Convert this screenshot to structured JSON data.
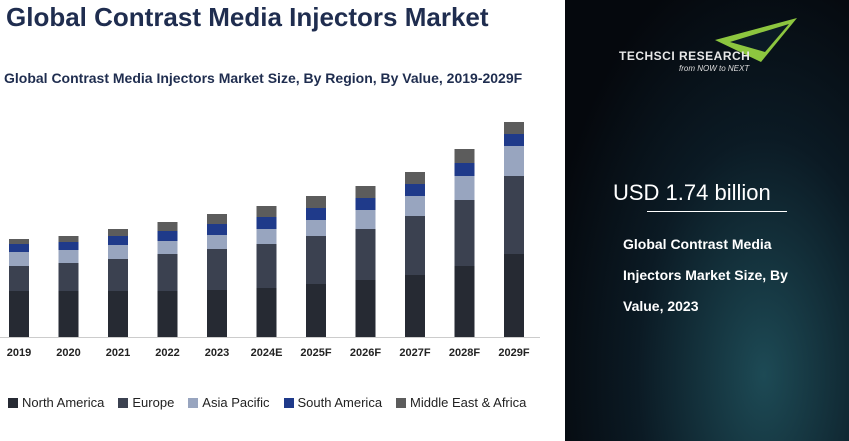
{
  "header": {
    "title": "Global Contrast Media Injectors Market"
  },
  "chart_data": {
    "type": "stacked_bar",
    "title": "Global Contrast Media Injectors Market Size, By Region, By Value, 2019-2029F",
    "categories": [
      "2019",
      "2020",
      "2021",
      "2022",
      "2023",
      "2024E",
      "2025F",
      "2026F",
      "2027F",
      "2028F",
      "2029F"
    ],
    "series": [
      {
        "name": "North America",
        "color": "#262a33",
        "values": [
          46,
          46,
          46,
          46,
          47,
          49,
          53,
          57,
          62,
          71,
          83
        ]
      },
      {
        "name": "Europe",
        "color": "#3b4150",
        "values": [
          25,
          28,
          32,
          37,
          41,
          44,
          48,
          51,
          59,
          66,
          78
        ]
      },
      {
        "name": "Asia Pacific",
        "color": "#98a5bf",
        "values": [
          14,
          13,
          14,
          13,
          14,
          15,
          16,
          19,
          20,
          24,
          30
        ]
      },
      {
        "name": "South America",
        "color": "#1f3a8a",
        "values": [
          8,
          8,
          9,
          10,
          11,
          12,
          12,
          12,
          12,
          13,
          12
        ]
      },
      {
        "name": "Middle East & Africa",
        "color": "#5c5c5c",
        "values": [
          5,
          6,
          7,
          9,
          10,
          11,
          12,
          12,
          12,
          14,
          12
        ]
      }
    ],
    "ylim": [
      0,
      230
    ],
    "legend": "bottom"
  },
  "panel": {
    "logo": "TECHSCI RESEARCH",
    "tagline": "from NOW to NEXT",
    "headline": "USD 1.74 billion",
    "caption": "Global Contrast Media Injectors Market Size, By Value, 2023"
  }
}
